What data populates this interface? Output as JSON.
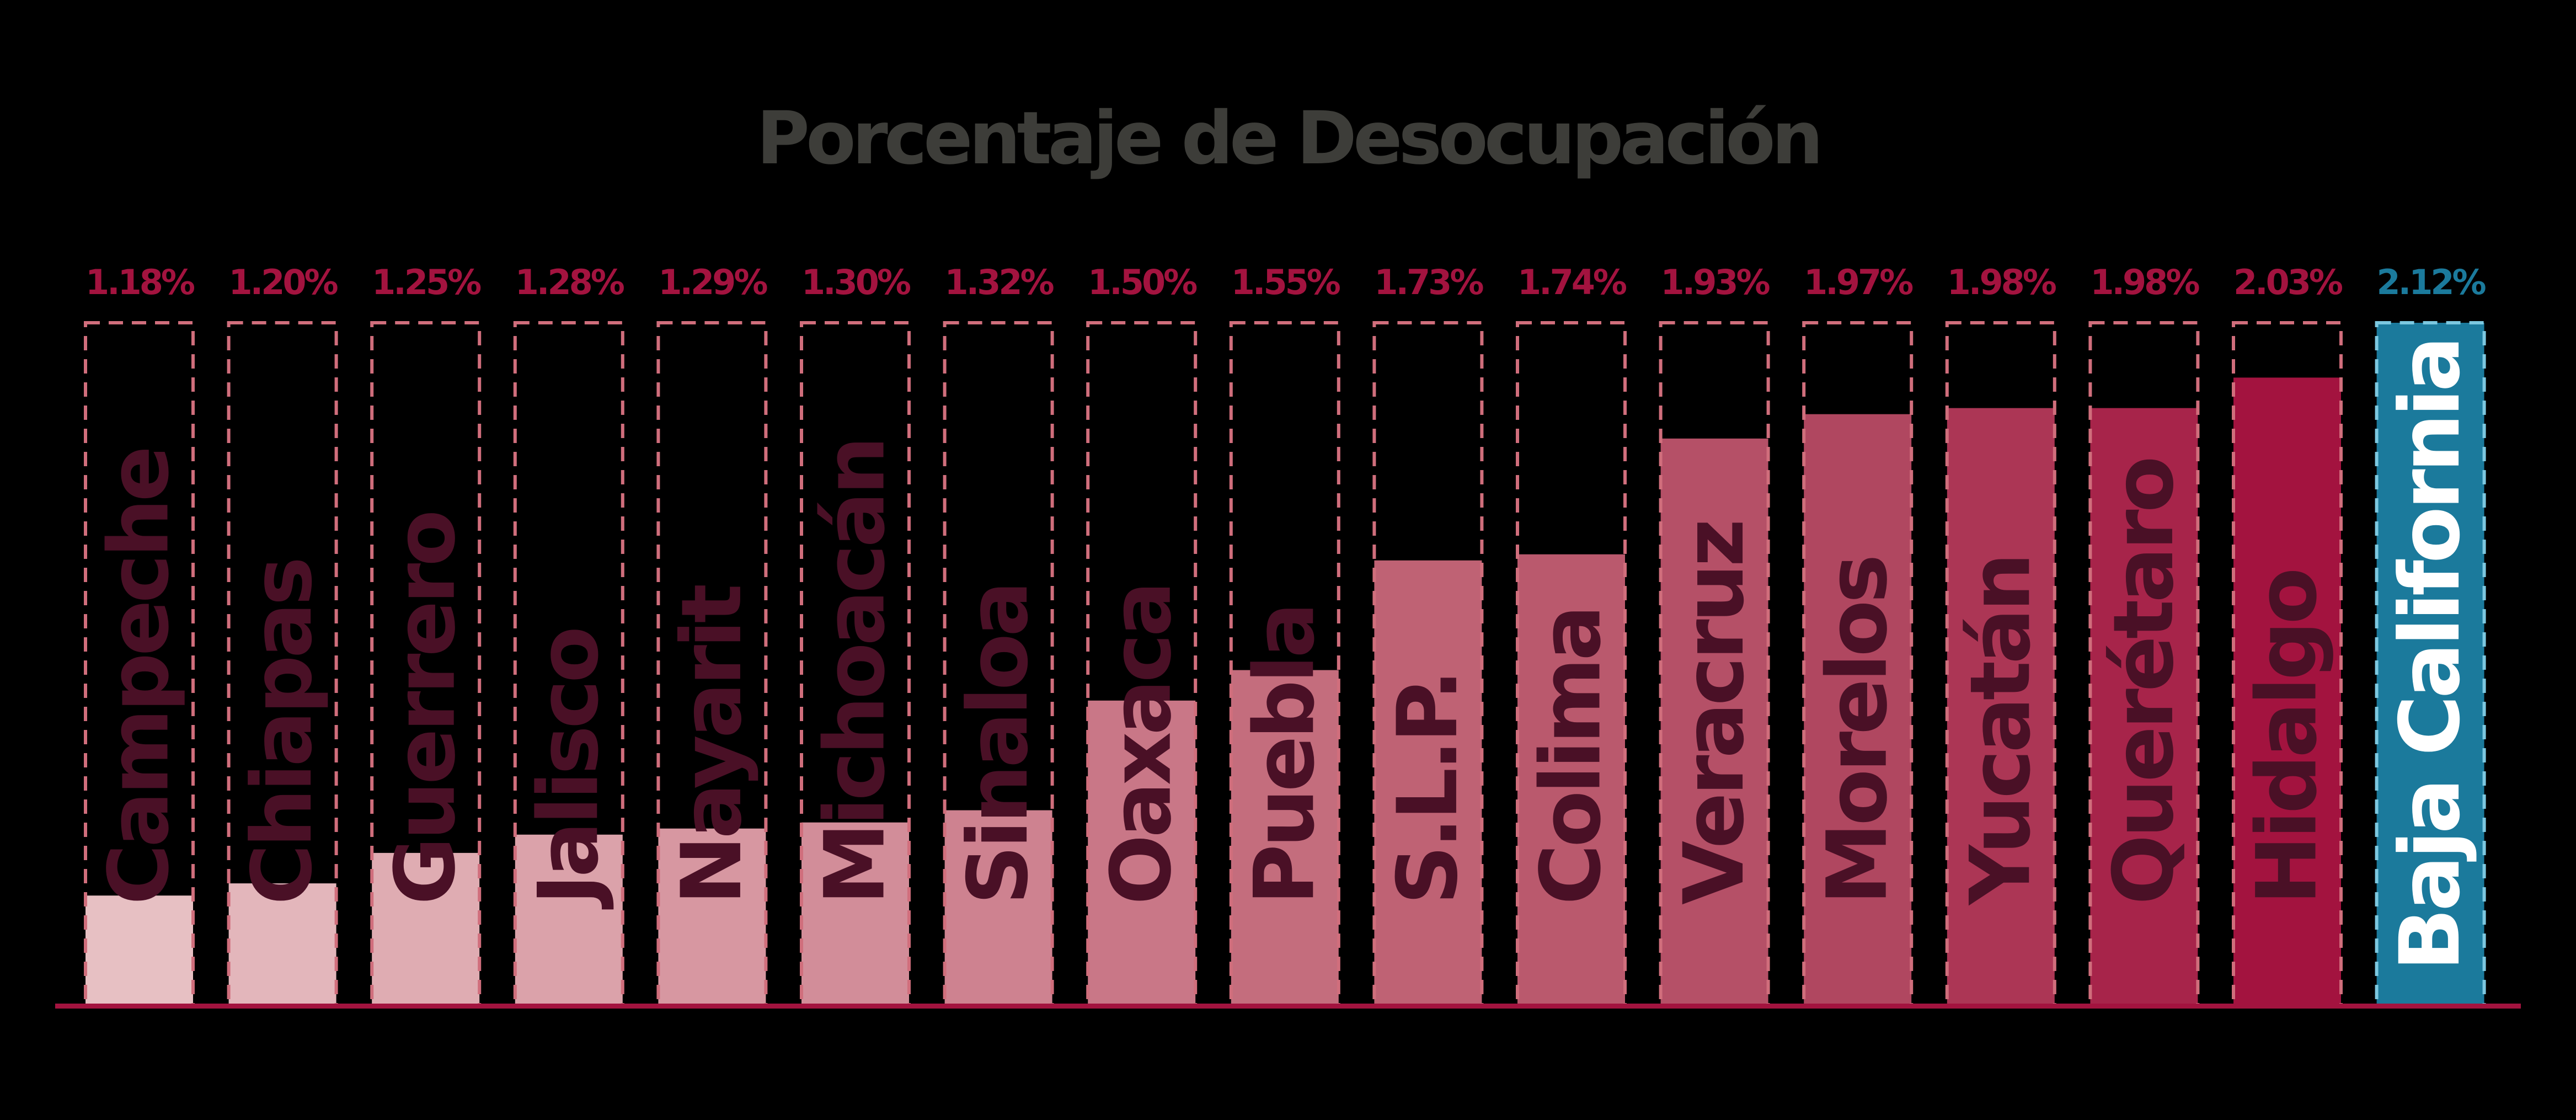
{
  "chart_data": {
    "type": "bar",
    "title": "Porcentaje de Desocupación",
    "categories": [
      "Campeche",
      "Chiapas",
      "Guerrero",
      "Jalisco",
      "Nayarit",
      "Michoacán",
      "Sinaloa",
      "Oaxaca",
      "Puebla",
      "S.L.P.",
      "Colima",
      "Veracruz",
      "Morelos",
      "Yucatán",
      "Querétaro",
      "Hidalgo",
      "Baja California"
    ],
    "values": [
      1.18,
      1.2,
      1.25,
      1.28,
      1.29,
      1.3,
      1.32,
      1.5,
      1.55,
      1.73,
      1.74,
      1.93,
      1.97,
      1.98,
      1.98,
      2.03,
      2.12
    ],
    "value_labels": [
      "1.18%",
      "1.20%",
      "1.25%",
      "1.28%",
      "1.29%",
      "1.30%",
      "1.32%",
      "1.50%",
      "1.55%",
      "1.73%",
      "1.74%",
      "1.93%",
      "1.97%",
      "1.98%",
      "1.98%",
      "2.03%",
      "2.12%"
    ],
    "ylim": [
      1.0,
      2.12
    ],
    "highlight_category": "Baja California",
    "colors": {
      "background": "#000000",
      "title": "#3d3d39",
      "value_label": "#a3133f",
      "highlight": "#1b7a9c",
      "highlight_text": "#ffffff",
      "category_text": "#4a1026",
      "baseline": "#a3133f",
      "dash_outline": "#d06e7c",
      "highlight_outline": "#7cc8e0",
      "bar_gradient": [
        "#e7c0c3",
        "#dba2aa",
        "#ce8290",
        "#bf6274",
        "#b04760",
        "#a3133f"
      ]
    }
  }
}
